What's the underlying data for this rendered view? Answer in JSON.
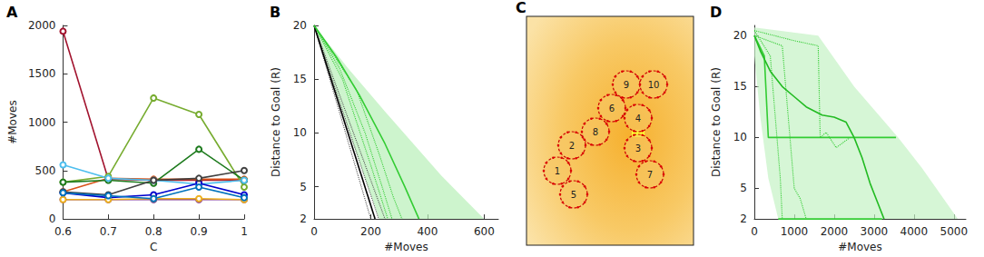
{
  "chart_data": [
    {
      "type": "line",
      "title": "A",
      "xlabel": "C",
      "ylabel": "#Moves",
      "xlim": [
        0.6,
        1
      ],
      "xticks": [
        0.6,
        0.7,
        0.8,
        0.9,
        1
      ],
      "ylim": [
        0,
        2000
      ],
      "yticks": [
        0,
        500,
        1000,
        1500,
        2000
      ],
      "grid": false,
      "x": [
        0.6,
        0.7,
        0.8,
        0.9,
        1
      ],
      "series": [
        {
          "color": "#a2142f",
          "marker": "circle",
          "line_style": "solid",
          "values": [
            1940,
            410,
            400,
            400,
            400
          ]
        },
        {
          "color": "#d95319",
          "marker": "circle",
          "line_style": "solid",
          "values": [
            280,
            420,
            410,
            410,
            410
          ]
        },
        {
          "color": "#77ac30",
          "marker": "circle",
          "line_style": "solid",
          "values": [
            380,
            440,
            1250,
            1080,
            330
          ]
        },
        {
          "color": "#1e7b1e",
          "marker": "circle",
          "line_style": "solid",
          "values": [
            380,
            400,
            370,
            720,
            400
          ]
        },
        {
          "color": "#4dbeee",
          "marker": "circle",
          "line_style": "solid",
          "values": [
            560,
            420,
            400,
            360,
            400
          ]
        },
        {
          "color": "#0000cc",
          "marker": "circle",
          "line_style": "solid",
          "values": [
            270,
            220,
            250,
            370,
            250
          ]
        },
        {
          "color": "#7e2f8e",
          "marker": "circle",
          "line_style": "solid",
          "values": [
            200,
            200,
            200,
            200,
            200
          ]
        },
        {
          "color": "#edb120",
          "marker": "circle",
          "line_style": "solid",
          "values": [
            200,
            200,
            210,
            210,
            200
          ]
        },
        {
          "color": "#404040",
          "marker": "circle",
          "line_style": "solid",
          "values": [
            280,
            250,
            400,
            420,
            500
          ]
        },
        {
          "color": "#0072bd",
          "marker": "circle",
          "line_style": "solid",
          "values": [
            270,
            240,
            210,
            330,
            220
          ]
        }
      ]
    },
    {
      "type": "line",
      "title": "B",
      "xlabel": "#Moves",
      "ylabel": "Distance to Goal (R)",
      "xlim": [
        0,
        650
      ],
      "xticks": [
        0,
        200,
        400,
        600
      ],
      "ylim": [
        2,
        20
      ],
      "yticks": [
        2,
        5,
        10,
        15,
        20
      ],
      "grid": false,
      "series": [
        {
          "type": "area",
          "color": "#b8efb8",
          "x": [
            0,
            120,
            250,
            350,
            450,
            600,
            230,
            150,
            0
          ],
          "values": [
            20,
            16,
            12,
            9,
            6,
            2,
            2,
            8,
            20
          ]
        },
        {
          "color": "#555555",
          "marker": "none",
          "line_style": "dotted",
          "x": [
            0,
            200
          ],
          "values": [
            20,
            2
          ]
        },
        {
          "color": "#555555",
          "marker": "none",
          "line_style": "dotted",
          "x": [
            0,
            228
          ],
          "values": [
            20,
            2
          ]
        },
        {
          "color": "#555555",
          "marker": "none",
          "line_style": "dotted",
          "x": [
            0,
            250
          ],
          "values": [
            20,
            2
          ]
        },
        {
          "color": "#000000",
          "marker": "none",
          "line_style": "solid",
          "x": [
            0,
            215
          ],
          "values": [
            20,
            2
          ]
        },
        {
          "color": "#33cc33",
          "marker": "none",
          "line_style": "dotted",
          "x": [
            0,
            100,
            200,
            260
          ],
          "values": [
            20,
            15,
            7,
            2
          ]
        },
        {
          "color": "#33cc33",
          "marker": "none",
          "line_style": "dotted",
          "x": [
            0,
            150,
            230,
            280,
            310
          ],
          "values": [
            20,
            14,
            8,
            4,
            2
          ]
        },
        {
          "color": "#33cc33",
          "marker": "none",
          "line_style": "dotted",
          "x": [
            0,
            90,
            180,
            240,
            275
          ],
          "values": [
            20,
            16,
            10,
            5,
            2
          ]
        },
        {
          "color": "#33cc33",
          "marker": "none",
          "line_style": "solid",
          "x": [
            0,
            80,
            160,
            250,
            320,
            370
          ],
          "values": [
            20,
            17,
            13.5,
            9,
            5,
            2
          ]
        }
      ]
    },
    {
      "type": "line",
      "title": "D",
      "xlabel": "#Moves",
      "ylabel": "Distance to Goal (R)",
      "xlim": [
        0,
        5300
      ],
      "xticks": [
        0,
        1000,
        2000,
        3000,
        4000,
        5000
      ],
      "ylim": [
        2,
        21
      ],
      "yticks": [
        2,
        5,
        10,
        15,
        20
      ],
      "grid": false,
      "series": [
        {
          "type": "area",
          "color": "#c4f2c4",
          "x": [
            0,
            1600,
            2500,
            3600,
            4200,
            5100,
            600,
            350,
            150,
            0
          ],
          "values": [
            20.8,
            20,
            15,
            10,
            7,
            2,
            2,
            6,
            12,
            18
          ]
        },
        {
          "color": "#33cc33",
          "marker": "none",
          "line_style": "dotted",
          "x": [
            0,
            400,
            650,
            700
          ],
          "values": [
            20.5,
            18,
            6,
            2
          ]
        },
        {
          "color": "#33cc33",
          "marker": "none",
          "line_style": "dotted",
          "x": [
            0,
            700,
            850,
            1000,
            1150,
            1300
          ],
          "values": [
            20,
            19,
            12,
            5,
            4,
            2
          ]
        },
        {
          "color": "#33cc33",
          "marker": "none",
          "line_style": "dotted",
          "x": [
            0,
            1000,
            1600,
            1650,
            1800,
            2050,
            2400
          ],
          "values": [
            20.5,
            19.5,
            19,
            10,
            10.5,
            9,
            10
          ]
        },
        {
          "color": "#33cc33",
          "marker": "none",
          "line_style": "solid",
          "x": [
            0,
            250,
            350,
            3550
          ],
          "values": [
            20,
            18,
            10,
            10
          ]
        },
        {
          "color": "#33cc33",
          "marker": "none",
          "line_style": "solid",
          "x": [
            600,
            3200
          ],
          "values": [
            2,
            2
          ]
        },
        {
          "color": "#22bb22",
          "marker": "none",
          "line_style": "solid",
          "x": [
            0,
            150,
            400,
            700,
            1000,
            1300,
            1700,
            2000,
            2300,
            2500,
            2700,
            2900,
            3100,
            3250
          ],
          "values": [
            20,
            18.5,
            16.5,
            15,
            14,
            13,
            12.2,
            12,
            11.5,
            10,
            8,
            5.5,
            3.5,
            2
          ]
        }
      ]
    }
  ],
  "diagram": {
    "title": "C",
    "nodes": [
      {
        "label": "1"
      },
      {
        "label": "2"
      },
      {
        "label": "3"
      },
      {
        "label": "4"
      },
      {
        "label": "5"
      },
      {
        "label": "6"
      },
      {
        "label": "7"
      },
      {
        "label": "8"
      },
      {
        "label": "9"
      },
      {
        "label": "10"
      }
    ]
  }
}
